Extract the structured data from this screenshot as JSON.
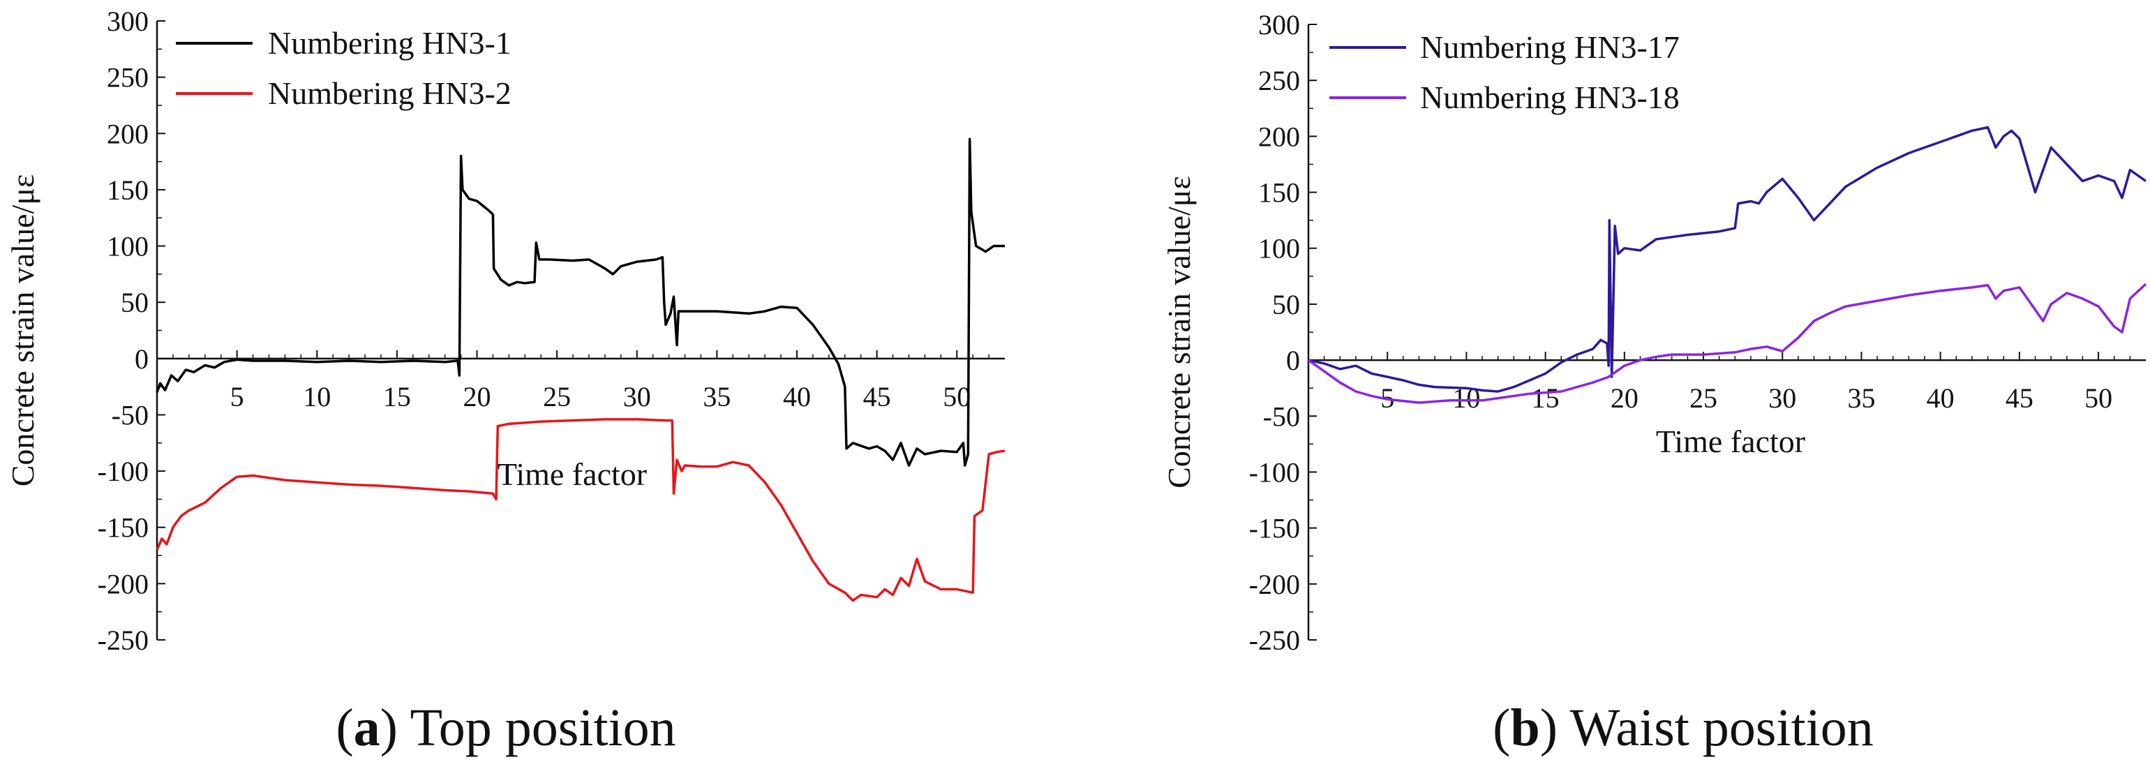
{
  "chart_data": [
    {
      "type": "line",
      "panel": "a",
      "caption_letter": "a",
      "caption_text": "Top position",
      "xlabel": "Time factor",
      "ylabel": "Concrete strain value/με",
      "xlim": [
        0,
        53
      ],
      "ylim": [
        -250,
        300
      ],
      "x_ticks": [
        5,
        10,
        15,
        20,
        25,
        30,
        35,
        40,
        45,
        50
      ],
      "x_tick_labels": [
        "5",
        "10",
        "15",
        "20",
        "25",
        "30",
        "35",
        "40",
        "45",
        "50"
      ],
      "y_ticks": [
        300,
        250,
        200,
        150,
        100,
        50,
        0,
        -50,
        -100,
        -150,
        -200,
        -250
      ],
      "y_tick_labels": [
        "300",
        "250",
        "200",
        "150",
        "100",
        "50",
        "0",
        "-50",
        "-100",
        "-150",
        "-200",
        "-250"
      ],
      "legend_position": "top-left",
      "series": [
        {
          "name": "Numbering HN3-1",
          "color": "#000000",
          "points": [
            [
              0,
              -30
            ],
            [
              0.2,
              -22
            ],
            [
              0.5,
              -28
            ],
            [
              0.9,
              -15
            ],
            [
              1.3,
              -20
            ],
            [
              1.8,
              -10
            ],
            [
              2.3,
              -12
            ],
            [
              3,
              -6
            ],
            [
              3.6,
              -8
            ],
            [
              4.2,
              -3
            ],
            [
              5,
              -1
            ],
            [
              6,
              -2
            ],
            [
              8,
              -2
            ],
            [
              10,
              -3
            ],
            [
              12,
              -2
            ],
            [
              14,
              -3
            ],
            [
              16,
              -2
            ],
            [
              18,
              -3
            ],
            [
              18.8,
              -2
            ],
            [
              18.9,
              -15
            ],
            [
              19.0,
              180
            ],
            [
              19.1,
              150
            ],
            [
              19.5,
              142
            ],
            [
              20,
              140
            ],
            [
              20.7,
              132
            ],
            [
              21.0,
              128
            ],
            [
              21.05,
              80
            ],
            [
              21.5,
              70
            ],
            [
              22,
              65
            ],
            [
              22.5,
              68
            ],
            [
              23,
              67
            ],
            [
              23.6,
              68
            ],
            [
              23.7,
              103
            ],
            [
              23.9,
              88
            ],
            [
              24.5,
              88
            ],
            [
              26,
              87
            ],
            [
              27,
              88
            ],
            [
              28,
              80
            ],
            [
              28.5,
              75
            ],
            [
              29,
              82
            ],
            [
              30,
              86
            ],
            [
              31.2,
              88
            ],
            [
              31.6,
              90
            ],
            [
              31.7,
              50
            ],
            [
              31.8,
              30
            ],
            [
              32.1,
              40
            ],
            [
              32.3,
              55
            ],
            [
              32.5,
              12
            ],
            [
              32.6,
              42
            ],
            [
              33,
              42
            ],
            [
              35,
              42
            ],
            [
              37,
              40
            ],
            [
              38,
              42
            ],
            [
              39,
              46
            ],
            [
              40,
              45
            ],
            [
              41,
              30
            ],
            [
              42,
              10
            ],
            [
              42.6,
              -5
            ],
            [
              43,
              -25
            ],
            [
              43.1,
              -80
            ],
            [
              43.5,
              -75
            ],
            [
              44.5,
              -80
            ],
            [
              45,
              -78
            ],
            [
              45.5,
              -82
            ],
            [
              46,
              -90
            ],
            [
              46.5,
              -75
            ],
            [
              47,
              -95
            ],
            [
              47.5,
              -80
            ],
            [
              48,
              -85
            ],
            [
              49,
              -82
            ],
            [
              50,
              -83
            ],
            [
              50.4,
              -75
            ],
            [
              50.5,
              -95
            ],
            [
              50.7,
              -85
            ],
            [
              50.8,
              195
            ],
            [
              50.9,
              130
            ],
            [
              51.2,
              100
            ],
            [
              51.8,
              95
            ],
            [
              52.3,
              100
            ],
            [
              53,
              100
            ]
          ]
        },
        {
          "name": "Numbering HN3-2",
          "color": "#e8151b",
          "points": [
            [
              0,
              -170
            ],
            [
              0.3,
              -160
            ],
            [
              0.6,
              -165
            ],
            [
              1,
              -150
            ],
            [
              1.5,
              -140
            ],
            [
              2,
              -135
            ],
            [
              3,
              -128
            ],
            [
              4,
              -115
            ],
            [
              5,
              -105
            ],
            [
              6,
              -104
            ],
            [
              8,
              -108
            ],
            [
              10,
              -110
            ],
            [
              12,
              -112
            ],
            [
              14,
              -113
            ],
            [
              16,
              -115
            ],
            [
              18,
              -117
            ],
            [
              19.5,
              -118
            ],
            [
              21,
              -120
            ],
            [
              21.2,
              -125
            ],
            [
              21.3,
              -60
            ],
            [
              22,
              -58
            ],
            [
              24,
              -56
            ],
            [
              26,
              -55
            ],
            [
              28,
              -54
            ],
            [
              30,
              -54
            ],
            [
              31.8,
              -55
            ],
            [
              32.2,
              -55
            ],
            [
              32.3,
              -120
            ],
            [
              32.5,
              -90
            ],
            [
              32.8,
              -100
            ],
            [
              33,
              -95
            ],
            [
              34,
              -96
            ],
            [
              35,
              -96
            ],
            [
              36,
              -92
            ],
            [
              37,
              -95
            ],
            [
              38,
              -110
            ],
            [
              39,
              -130
            ],
            [
              40,
              -155
            ],
            [
              41,
              -180
            ],
            [
              42,
              -200
            ],
            [
              43,
              -208
            ],
            [
              43.5,
              -215
            ],
            [
              44,
              -210
            ],
            [
              45,
              -212
            ],
            [
              45.5,
              -205
            ],
            [
              46,
              -210
            ],
            [
              46.5,
              -195
            ],
            [
              47,
              -202
            ],
            [
              47.5,
              -178
            ],
            [
              48,
              -198
            ],
            [
              49,
              -205
            ],
            [
              50,
              -205
            ],
            [
              51,
              -208
            ],
            [
              51.1,
              -140
            ],
            [
              51.6,
              -135
            ],
            [
              52,
              -85
            ],
            [
              52.5,
              -83
            ],
            [
              53,
              -82
            ]
          ]
        }
      ]
    },
    {
      "type": "line",
      "panel": "b",
      "caption_letter": "b",
      "caption_text": "Waist position",
      "xlabel": "Time factor",
      "ylabel": "Concrete strain value/με",
      "xlim": [
        0,
        53
      ],
      "ylim": [
        -250,
        300
      ],
      "x_ticks": [
        5,
        10,
        15,
        20,
        25,
        30,
        35,
        40,
        45,
        50
      ],
      "x_tick_labels": [
        "5",
        "10",
        "15",
        "20",
        "25",
        "30",
        "35",
        "40",
        "45",
        "50"
      ],
      "y_ticks": [
        300,
        250,
        200,
        150,
        100,
        50,
        0,
        -50,
        -100,
        -150,
        -200,
        -250
      ],
      "y_tick_labels": [
        "300",
        "250",
        "200",
        "150",
        "100",
        "50",
        "0",
        "-50",
        "-100",
        "-150",
        "-200",
        "-250"
      ],
      "legend_position": "top-left",
      "series": [
        {
          "name": "Numbering HN3-17",
          "color": "#2b1a9e",
          "points": [
            [
              0,
              0
            ],
            [
              1,
              -3
            ],
            [
              2,
              -8
            ],
            [
              3,
              -5
            ],
            [
              4,
              -12
            ],
            [
              5,
              -15
            ],
            [
              6,
              -18
            ],
            [
              7,
              -22
            ],
            [
              8,
              -24
            ],
            [
              10,
              -25
            ],
            [
              11,
              -27
            ],
            [
              12,
              -28
            ],
            [
              13,
              -24
            ],
            [
              14,
              -18
            ],
            [
              15,
              -12
            ],
            [
              16,
              -2
            ],
            [
              17,
              5
            ],
            [
              18,
              10
            ],
            [
              18.5,
              18
            ],
            [
              18.9,
              15
            ],
            [
              19.0,
              -5
            ],
            [
              19.05,
              125
            ],
            [
              19.2,
              -15
            ],
            [
              19.4,
              120
            ],
            [
              19.6,
              95
            ],
            [
              20,
              100
            ],
            [
              21,
              98
            ],
            [
              22,
              108
            ],
            [
              23,
              110
            ],
            [
              24,
              112
            ],
            [
              26,
              115
            ],
            [
              27,
              118
            ],
            [
              27.2,
              140
            ],
            [
              28,
              142
            ],
            [
              28.5,
              140
            ],
            [
              29,
              150
            ],
            [
              30,
              162
            ],
            [
              31,
              145
            ],
            [
              32,
              125
            ],
            [
              33,
              140
            ],
            [
              34,
              155
            ],
            [
              36,
              172
            ],
            [
              38,
              185
            ],
            [
              40,
              195
            ],
            [
              42,
              205
            ],
            [
              43,
              208
            ],
            [
              43.5,
              190
            ],
            [
              44,
              200
            ],
            [
              44.5,
              205
            ],
            [
              45,
              198
            ],
            [
              46,
              150
            ],
            [
              46.5,
              170
            ],
            [
              47,
              190
            ],
            [
              48,
              175
            ],
            [
              49,
              160
            ],
            [
              50,
              165
            ],
            [
              51,
              160
            ],
            [
              51.5,
              145
            ],
            [
              52,
              170
            ],
            [
              53,
              160
            ]
          ]
        },
        {
          "name": "Numbering HN3-18",
          "color": "#8b24e5",
          "points": [
            [
              0,
              0
            ],
            [
              1,
              -10
            ],
            [
              2,
              -20
            ],
            [
              3,
              -28
            ],
            [
              4,
              -32
            ],
            [
              5,
              -35
            ],
            [
              7,
              -38
            ],
            [
              9,
              -36
            ],
            [
              11,
              -36
            ],
            [
              12,
              -34
            ],
            [
              14,
              -30
            ],
            [
              16,
              -28
            ],
            [
              18,
              -20
            ],
            [
              19,
              -15
            ],
            [
              20,
              -5
            ],
            [
              21,
              0
            ],
            [
              22,
              3
            ],
            [
              23,
              5
            ],
            [
              25,
              5
            ],
            [
              27,
              7
            ],
            [
              28,
              10
            ],
            [
              29,
              12
            ],
            [
              30,
              8
            ],
            [
              31,
              20
            ],
            [
              32,
              35
            ],
            [
              33,
              42
            ],
            [
              34,
              48
            ],
            [
              36,
              53
            ],
            [
              38,
              58
            ],
            [
              40,
              62
            ],
            [
              42,
              65
            ],
            [
              43,
              67
            ],
            [
              43.5,
              55
            ],
            [
              44,
              62
            ],
            [
              45,
              65
            ],
            [
              46,
              45
            ],
            [
              46.5,
              35
            ],
            [
              47,
              50
            ],
            [
              48,
              60
            ],
            [
              49,
              55
            ],
            [
              50,
              48
            ],
            [
              51,
              30
            ],
            [
              51.5,
              25
            ],
            [
              52,
              55
            ],
            [
              53,
              68
            ]
          ]
        }
      ]
    }
  ]
}
